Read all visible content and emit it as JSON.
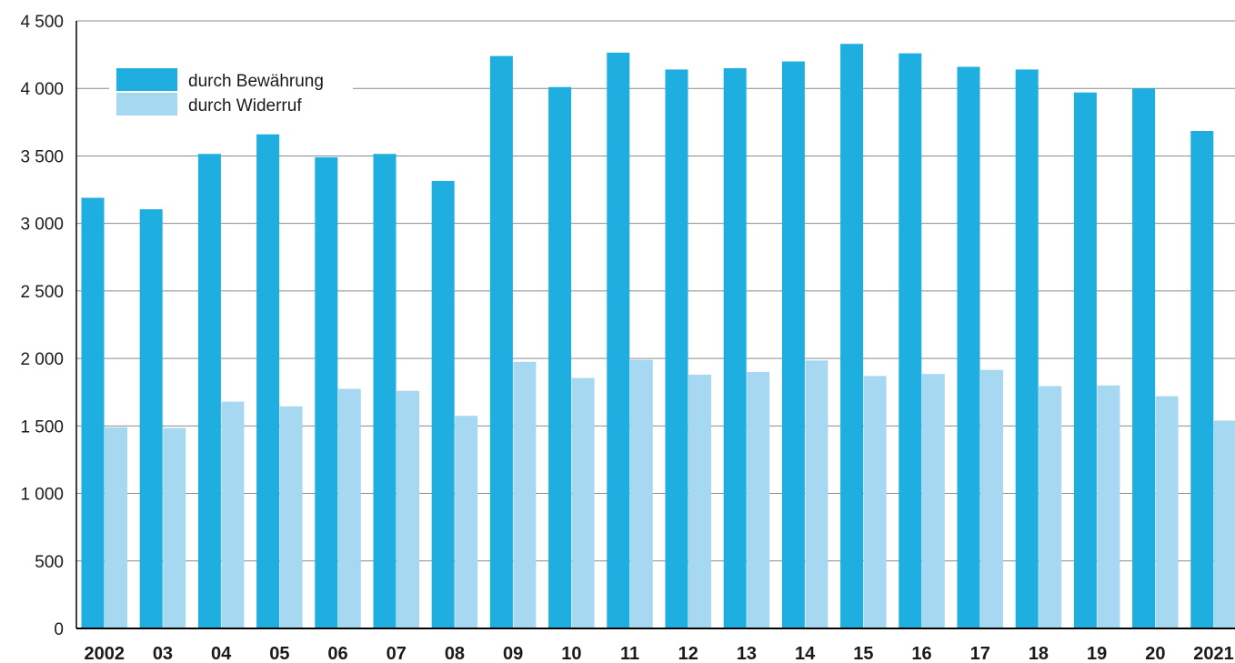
{
  "chart_data": {
    "type": "bar",
    "categories": [
      "2002",
      "03",
      "04",
      "05",
      "06",
      "07",
      "08",
      "09",
      "10",
      "11",
      "12",
      "13",
      "14",
      "15",
      "16",
      "17",
      "18",
      "19",
      "20",
      "2021"
    ],
    "series": [
      {
        "name": "durch Bewährung",
        "color": "#1eaee0",
        "values": [
          3190,
          3105,
          3515,
          3660,
          3490,
          3515,
          3315,
          4240,
          4010,
          4265,
          4140,
          4150,
          4200,
          4330,
          4260,
          4160,
          4140,
          3970,
          4000,
          3685
        ]
      },
      {
        "name": "durch Widerruf",
        "color": "#a6d9f1",
        "values": [
          1490,
          1485,
          1680,
          1645,
          1775,
          1760,
          1575,
          1975,
          1855,
          1990,
          1880,
          1900,
          1985,
          1870,
          1885,
          1915,
          1795,
          1800,
          1720,
          1540
        ]
      }
    ],
    "ylim": [
      0,
      4500
    ],
    "yticks": [
      {
        "value": 0,
        "label": "0"
      },
      {
        "value": 500,
        "label": "500"
      },
      {
        "value": 1000,
        "label": "1 000"
      },
      {
        "value": 1500,
        "label": "1 500"
      },
      {
        "value": 2000,
        "label": "2 000"
      },
      {
        "value": 2500,
        "label": "2 500"
      },
      {
        "value": 3000,
        "label": "3 000"
      },
      {
        "value": 3500,
        "label": "3 500"
      },
      {
        "value": 4000,
        "label": "4 000"
      },
      {
        "value": 4500,
        "label": "4 500"
      }
    ],
    "grid": true,
    "legend_position": "top-left",
    "xlabel": "",
    "ylabel": "",
    "title": ""
  }
}
